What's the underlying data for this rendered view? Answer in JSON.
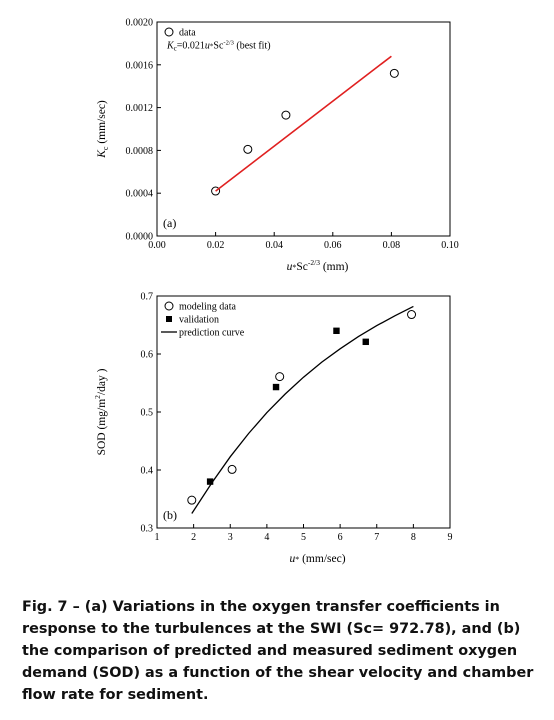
{
  "chart_data": [
    {
      "type": "scatter",
      "panel_label": "(a)",
      "xlabel": "u*Sc^-2/3 (mm)",
      "ylabel": "Kc (mm/sec)",
      "xlim": [
        0.0,
        0.1
      ],
      "ylim": [
        0.0,
        0.002
      ],
      "x_ticks": [
        "0.00",
        "0.02",
        "0.04",
        "0.06",
        "0.08",
        "0.10"
      ],
      "y_ticks": [
        "0.0000",
        "0.0004",
        "0.0008",
        "0.0012",
        "0.0016",
        "0.0020"
      ],
      "legend_position": "top-left",
      "grid": false,
      "series": [
        {
          "name": "data",
          "marker": "open-circle",
          "points": [
            [
              0.02,
              0.00042
            ],
            [
              0.031,
              0.00081
            ],
            [
              0.044,
              0.00113
            ],
            [
              0.081,
              0.00152
            ]
          ]
        },
        {
          "name": "Kc=0.021u*Sc^-2/3 (best fit)",
          "marker": "line",
          "color": "#e02020",
          "points": [
            [
              0.02,
              0.00042
            ],
            [
              0.08,
              0.00168
            ]
          ]
        }
      ]
    },
    {
      "type": "scatter",
      "panel_label": "(b)",
      "xlabel": "u* (mm/sec)",
      "ylabel": "SOD (mg/m2/day )",
      "xlim": [
        1,
        9
      ],
      "ylim": [
        0.3,
        0.7
      ],
      "x_ticks": [
        "1",
        "2",
        "3",
        "4",
        "5",
        "6",
        "7",
        "8",
        "9"
      ],
      "y_ticks": [
        "0.3",
        "0.4",
        "0.5",
        "0.6",
        "0.7"
      ],
      "legend_position": "top-left",
      "grid": false,
      "series": [
        {
          "name": "modeling data",
          "marker": "open-circle",
          "points": [
            [
              1.95,
              0.348
            ],
            [
              3.05,
              0.401
            ],
            [
              4.35,
              0.561
            ],
            [
              7.95,
              0.668
            ]
          ]
        },
        {
          "name": "validation",
          "marker": "filled-square",
          "points": [
            [
              2.45,
              0.38
            ],
            [
              4.25,
              0.543
            ],
            [
              5.9,
              0.64
            ],
            [
              6.7,
              0.621
            ]
          ]
        },
        {
          "name": "prediction curve",
          "marker": "line",
          "color": "#000000",
          "points": [
            [
              1.95,
              0.325
            ],
            [
              2.5,
              0.378
            ],
            [
              3.0,
              0.423
            ],
            [
              3.5,
              0.463
            ],
            [
              4.0,
              0.499
            ],
            [
              4.5,
              0.531
            ],
            [
              5.0,
              0.56
            ],
            [
              5.5,
              0.586
            ],
            [
              6.0,
              0.609
            ],
            [
              6.5,
              0.63
            ],
            [
              7.0,
              0.649
            ],
            [
              7.5,
              0.666
            ],
            [
              8.0,
              0.682
            ]
          ]
        }
      ]
    }
  ],
  "caption": "Fig. 7 – (a) Variations in the oxygen transfer coefficients in response to the turbulences at the SWI (Sc= 972.78), and (b) the comparison of predicted and measured sediment oxygen demand (SOD) as a function of the shear velocity and chamber flow rate for sediment."
}
